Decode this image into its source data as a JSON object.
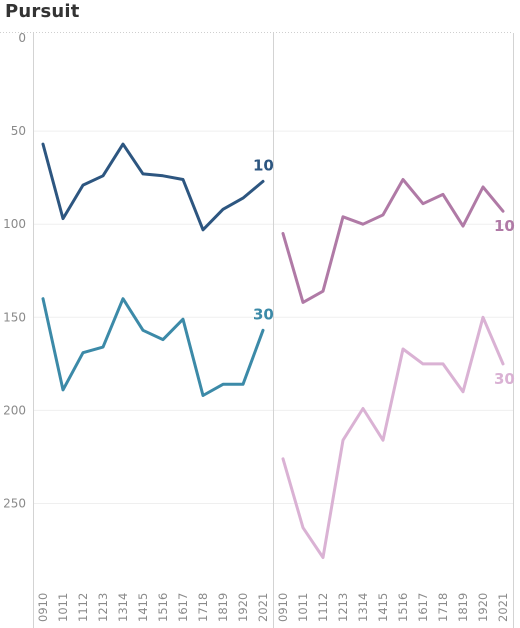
{
  "title": "Pursuit",
  "chart_data": {
    "type": "line",
    "y_axis": {
      "reversed": true,
      "ylim": [
        0,
        292
      ],
      "ticks": [
        0,
        50,
        100,
        150,
        200,
        250
      ]
    },
    "grid": true,
    "panels": [
      {
        "categories": [
          "0910",
          "1011",
          "1112",
          "1213",
          "1314",
          "1415",
          "1516",
          "1617",
          "1718",
          "1819",
          "1920",
          "2021"
        ],
        "series": [
          {
            "label": "10",
            "color": "#2d5680",
            "values": [
              57,
              97,
              79,
              74,
              57,
              73,
              74,
              76,
              103,
              92,
              86,
              77
            ]
          },
          {
            "label": "30",
            "color": "#3c8aa8",
            "values": [
              140,
              189,
              169,
              166,
              140,
              157,
              162,
              151,
              192,
              186,
              186,
              157
            ]
          }
        ]
      },
      {
        "categories": [
          "0910",
          "1011",
          "1112",
          "1213",
          "1314",
          "1415",
          "1516",
          "1617",
          "1718",
          "1819",
          "1920",
          "2021"
        ],
        "series": [
          {
            "label": "10",
            "color": "#b07aa6",
            "values": [
              105,
              142,
              136,
              96,
              100,
              95,
              76,
              89,
              84,
              101,
              80,
              93
            ]
          },
          {
            "label": "30",
            "color": "#dab2d4",
            "values": [
              226,
              263,
              279,
              216,
              199,
              216,
              167,
              175,
              175,
              190,
              150,
              175
            ]
          }
        ]
      }
    ]
  }
}
